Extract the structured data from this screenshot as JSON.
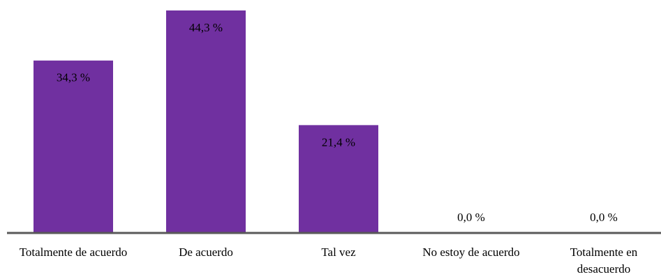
{
  "chart_data": {
    "type": "bar",
    "categories": [
      "Totalmente de acuerdo",
      "De acuerdo",
      "Tal vez",
      "No estoy de acuerdo",
      "Totalmente en desacuerdo"
    ],
    "values": [
      34.3,
      44.3,
      21.4,
      0,
      0
    ],
    "value_labels": [
      "34,3 %",
      "44,3 %",
      "21,4 %",
      "0,0 %",
      "0,0 %"
    ],
    "color": "#7030a0"
  }
}
